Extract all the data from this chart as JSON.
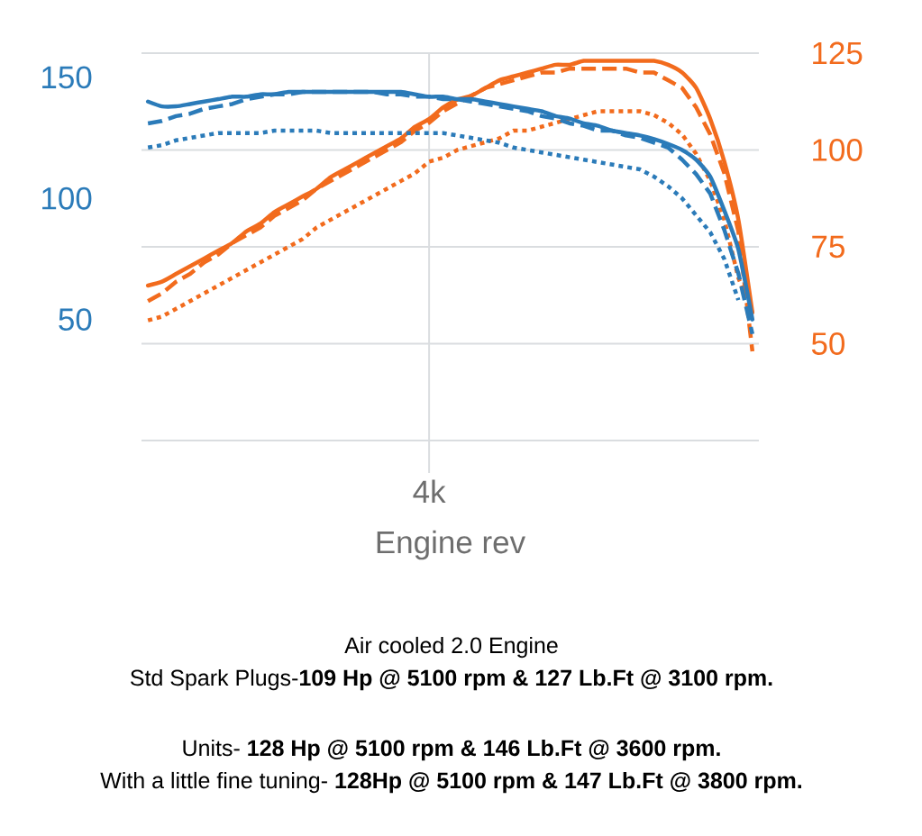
{
  "chart_data": {
    "type": "line",
    "xlabel": "Engine rev",
    "categories": [
      null,
      null,
      null,
      null,
      null,
      null,
      null,
      null,
      null,
      null,
      null,
      null,
      null,
      null,
      null,
      null,
      null,
      null,
      null,
      null,
      "4k",
      null,
      null,
      null,
      null,
      null,
      null,
      null,
      null,
      null,
      null,
      null,
      null,
      null,
      null,
      null,
      null,
      null,
      null,
      null,
      null,
      null,
      null,
      null
    ],
    "ylim": [
      0,
      160
    ],
    "yticks": [
      50,
      100,
      150
    ],
    "y2lim": [
      25,
      125
    ],
    "y2ticks": [
      {
        "value": 25,
        "label": null
      },
      50,
      75,
      100,
      125
    ],
    "grid": true,
    "marker": "none",
    "series": [
      {
        "color": "#2b7bb9",
        "line_style": "solid",
        "axis": "y",
        "values": [
          140,
          138,
          138,
          139,
          140,
          141,
          142,
          142,
          143,
          143,
          144,
          144,
          144,
          144,
          144,
          144,
          144,
          144,
          144,
          143,
          142,
          142,
          141,
          141,
          140,
          139,
          138,
          137,
          136,
          134,
          133,
          131,
          130,
          128,
          127,
          126,
          124.5,
          122.5,
          120,
          116,
          109,
          95,
          79,
          50
        ]
      },
      {
        "color": "#2b7bb9",
        "line_style": "dashed",
        "axis": "y",
        "values": [
          131,
          132,
          134,
          135,
          137,
          138,
          139,
          141,
          142,
          143,
          143,
          144,
          144,
          144,
          144,
          144,
          144,
          143,
          143,
          142,
          142,
          141,
          141,
          140,
          139,
          138,
          137,
          136,
          134,
          133,
          131,
          130,
          128,
          128,
          126,
          125,
          123,
          121,
          116,
          110,
          102,
          87,
          69,
          44
        ]
      },
      {
        "color": "#2b7bb9",
        "line_style": "dotted",
        "axis": "y",
        "values": [
          121,
          122,
          124,
          125,
          126,
          127,
          127,
          127,
          127,
          128,
          128,
          128,
          128,
          127,
          127,
          127,
          127,
          127,
          127,
          127,
          127,
          127,
          126,
          125,
          124,
          123,
          121,
          120,
          119,
          118,
          117,
          116,
          115,
          114,
          113,
          112,
          109,
          105,
          100,
          93,
          86,
          75,
          58,
          null
        ]
      },
      {
        "color": "#f26b1d",
        "line_style": "solid",
        "axis": "y2",
        "values": [
          65,
          66,
          68,
          70,
          72,
          74,
          76,
          79,
          81,
          84,
          86,
          88,
          90,
          93,
          95,
          97,
          99,
          101,
          103,
          106,
          108,
          111,
          113,
          114,
          116,
          118,
          119,
          120,
          121,
          122,
          122,
          123,
          123,
          123,
          123,
          123,
          123,
          122,
          120,
          116,
          108,
          97,
          82,
          58
        ]
      },
      {
        "color": "#f26b1d",
        "line_style": "dashed",
        "axis": "y2",
        "values": [
          61,
          63,
          66,
          68,
          71,
          73,
          76,
          78,
          80,
          83,
          85,
          87,
          90,
          92,
          94,
          96,
          98,
          100,
          102,
          105,
          107,
          110,
          112,
          114,
          116,
          117,
          118,
          119,
          120,
          120,
          121,
          121,
          121,
          121,
          121,
          120,
          120,
          118,
          116,
          111,
          104,
          94,
          79,
          48
        ]
      },
      {
        "color": "#f26b1d",
        "line_style": "dotted",
        "axis": "y2",
        "values": [
          56,
          57,
          59,
          61,
          63,
          65,
          67,
          69,
          71,
          73,
          75,
          77,
          80,
          82,
          84,
          86,
          88,
          90,
          92,
          94,
          97,
          98,
          100,
          101,
          102,
          103,
          105,
          105,
          106,
          107,
          108,
          109,
          110,
          110,
          110,
          110,
          109,
          107,
          104,
          99,
          92,
          82,
          67,
          58
        ]
      }
    ],
    "annotations": [
      "Air cooled 2.0 Engine",
      "Std Spark Plugs-**109 Hp @ 5100 rpm & 127 Lb.Ft @ 3100 rpm.**",
      "Units- **128 Hp @ 5100 rpm & 146 Lb.Ft @ 3600 rpm.**",
      "With a little fine tuning- **128Hp @ 5100 rpm & 147 Lb.Ft @ 3800 rpm.**"
    ]
  }
}
